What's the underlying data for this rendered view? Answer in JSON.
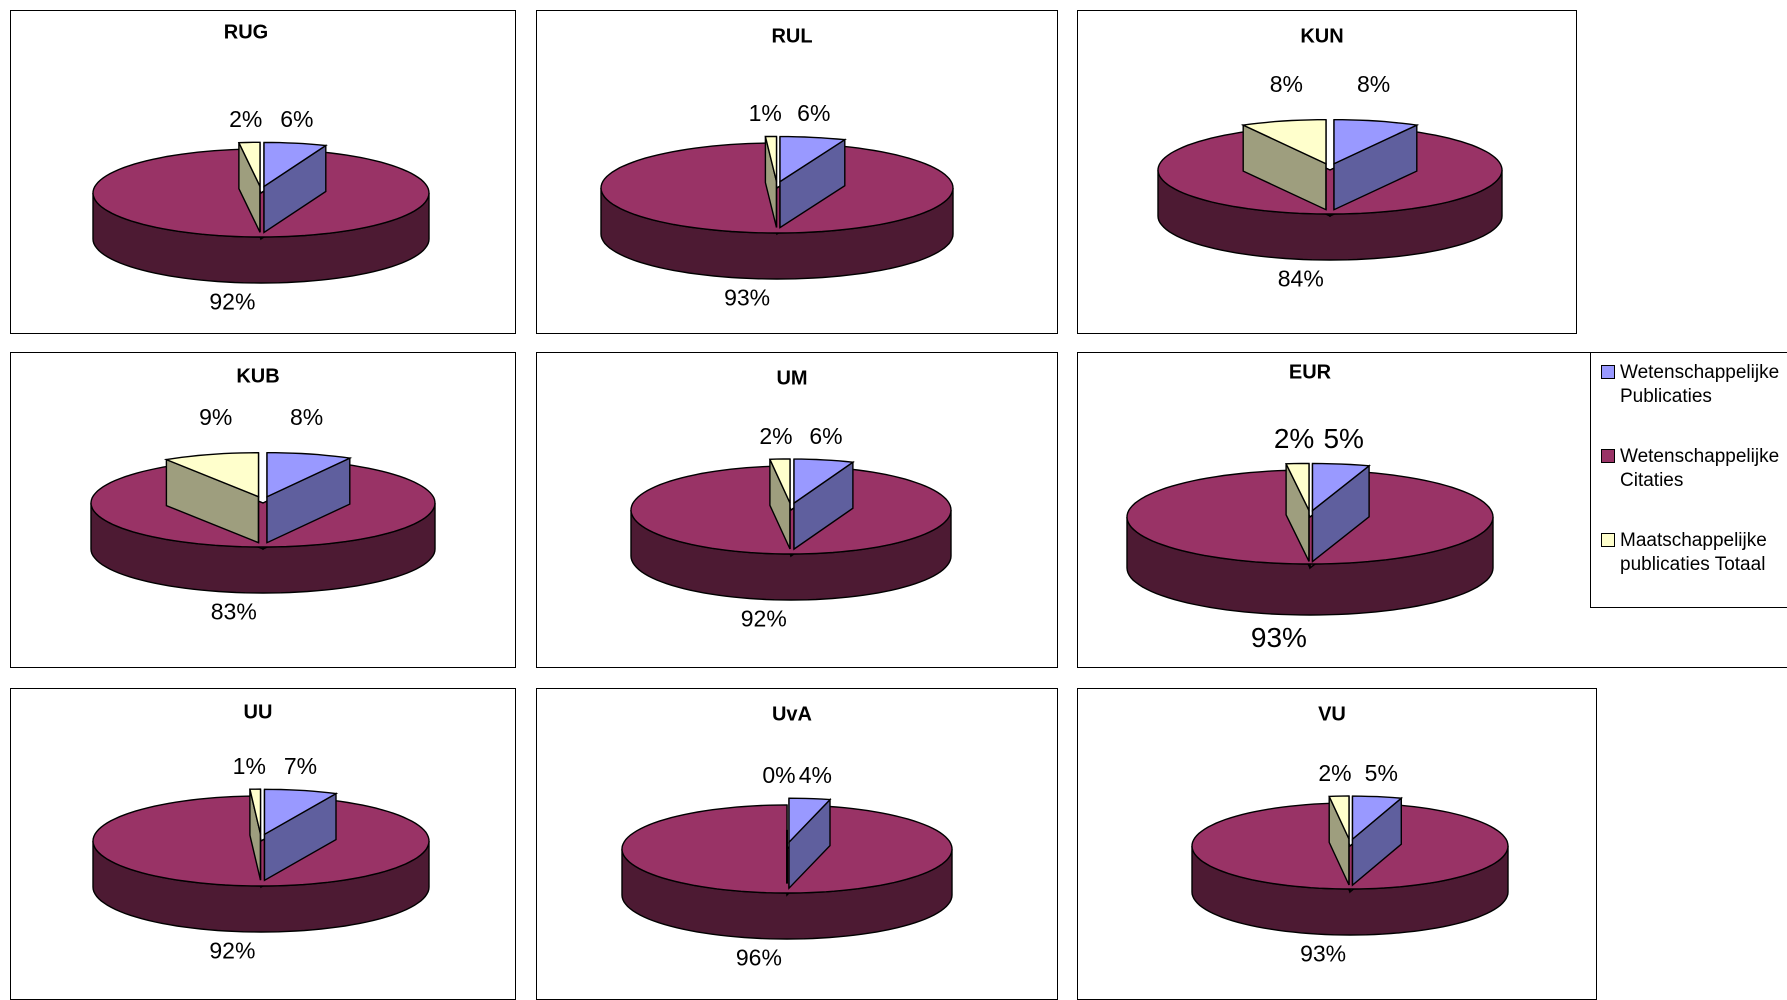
{
  "chart_data": {
    "type": "pie",
    "variant": "3d-exploded",
    "colors": {
      "Wetenschappelijke Publicaties": "#9999ff",
      "Wetenschappelijke Citaties": "#993366",
      "Maatschappelijke publicaties Totaal": "#ffffcc"
    },
    "legend": {
      "position": "right",
      "entries": [
        "Wetenschappelijke\nPublicaties",
        "Wetenschappelijke\nCitaties",
        "Maatschappelijke\npublicaties Totaal"
      ]
    },
    "charts": [
      {
        "title": "RUG",
        "values": [
          6,
          92,
          2
        ],
        "labels": [
          "6%",
          "92%",
          "2%"
        ]
      },
      {
        "title": "RUL",
        "values": [
          6,
          93,
          1
        ],
        "labels": [
          "6%",
          "93%",
          "1%"
        ]
      },
      {
        "title": "KUN",
        "values": [
          8,
          84,
          8
        ],
        "labels": [
          "8%",
          "84%",
          "8%"
        ]
      },
      {
        "title": "KUB",
        "values": [
          8,
          83,
          9
        ],
        "labels": [
          "8%",
          "83%",
          "9%"
        ]
      },
      {
        "title": "UM",
        "values": [
          6,
          92,
          2
        ],
        "labels": [
          "6%",
          "92%",
          "2%"
        ]
      },
      {
        "title": "EUR",
        "values": [
          5,
          93,
          2
        ],
        "labels": [
          "5%",
          "93%",
          "2%"
        ]
      },
      {
        "title": "UU",
        "values": [
          7,
          92,
          1
        ],
        "labels": [
          "7%",
          "92%",
          "1%"
        ]
      },
      {
        "title": "UvA",
        "values": [
          4,
          96,
          0
        ],
        "labels": [
          "4%",
          "96%",
          "0%"
        ]
      },
      {
        "title": "VU",
        "values": [
          5,
          93,
          2
        ],
        "labels": [
          "5%",
          "93%",
          "2%"
        ]
      }
    ]
  }
}
